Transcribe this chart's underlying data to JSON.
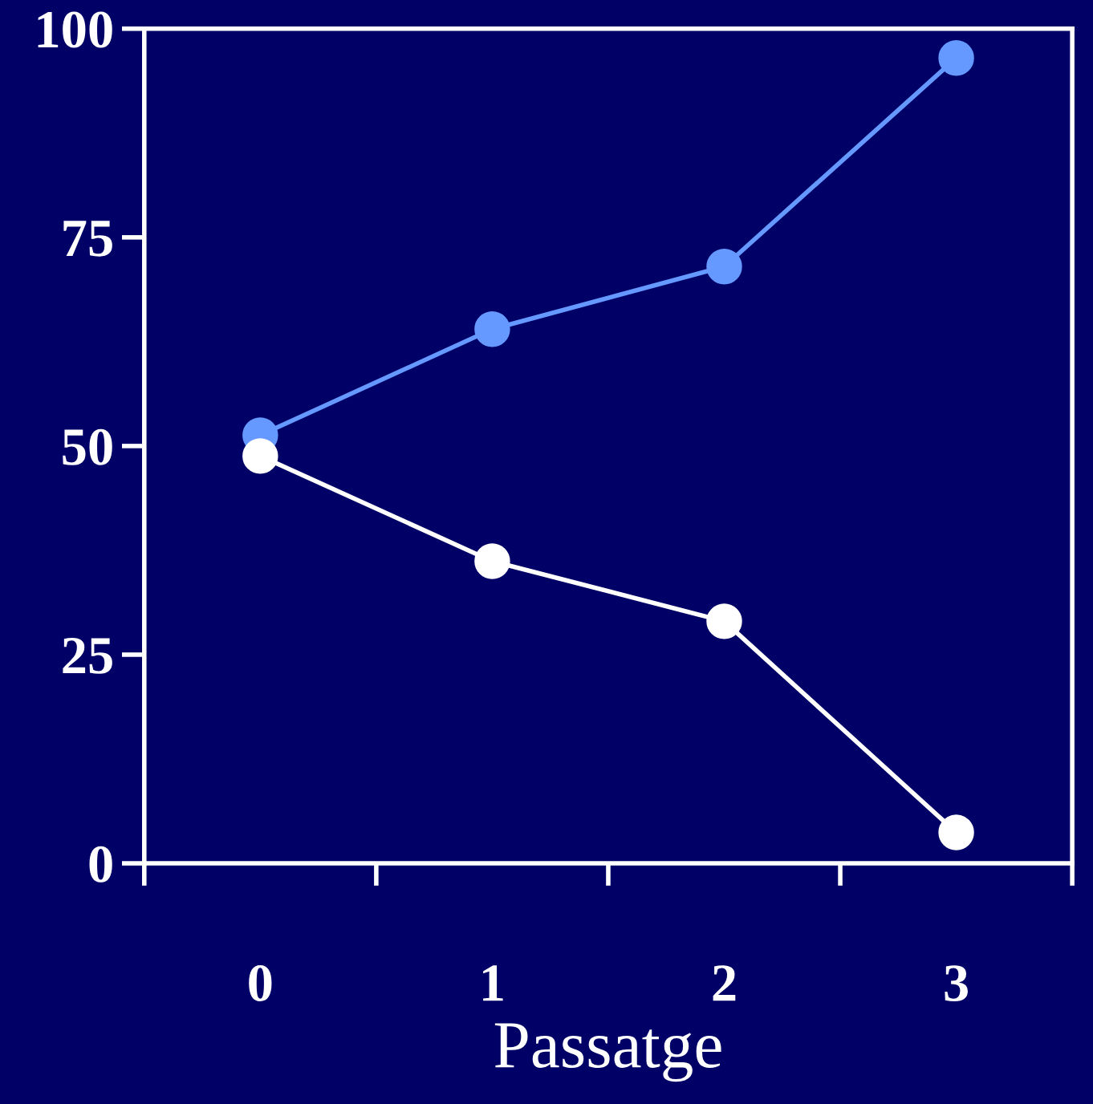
{
  "chart_data": {
    "type": "line",
    "xlabel": "Passatge",
    "categories": [
      "0",
      "1",
      "2",
      "3"
    ],
    "series": [
      {
        "color": "#6699ff",
        "values": [
          51.3,
          64,
          71.5,
          96.5
        ]
      },
      {
        "color": "#ffffff",
        "values": [
          48.8,
          36.2,
          29,
          3.7
        ]
      }
    ],
    "ylim": [
      0,
      100
    ],
    "yticks": [
      0,
      25,
      50,
      75,
      100
    ],
    "grid": false,
    "legend": false,
    "marker": "circle",
    "line_style": "solid"
  }
}
